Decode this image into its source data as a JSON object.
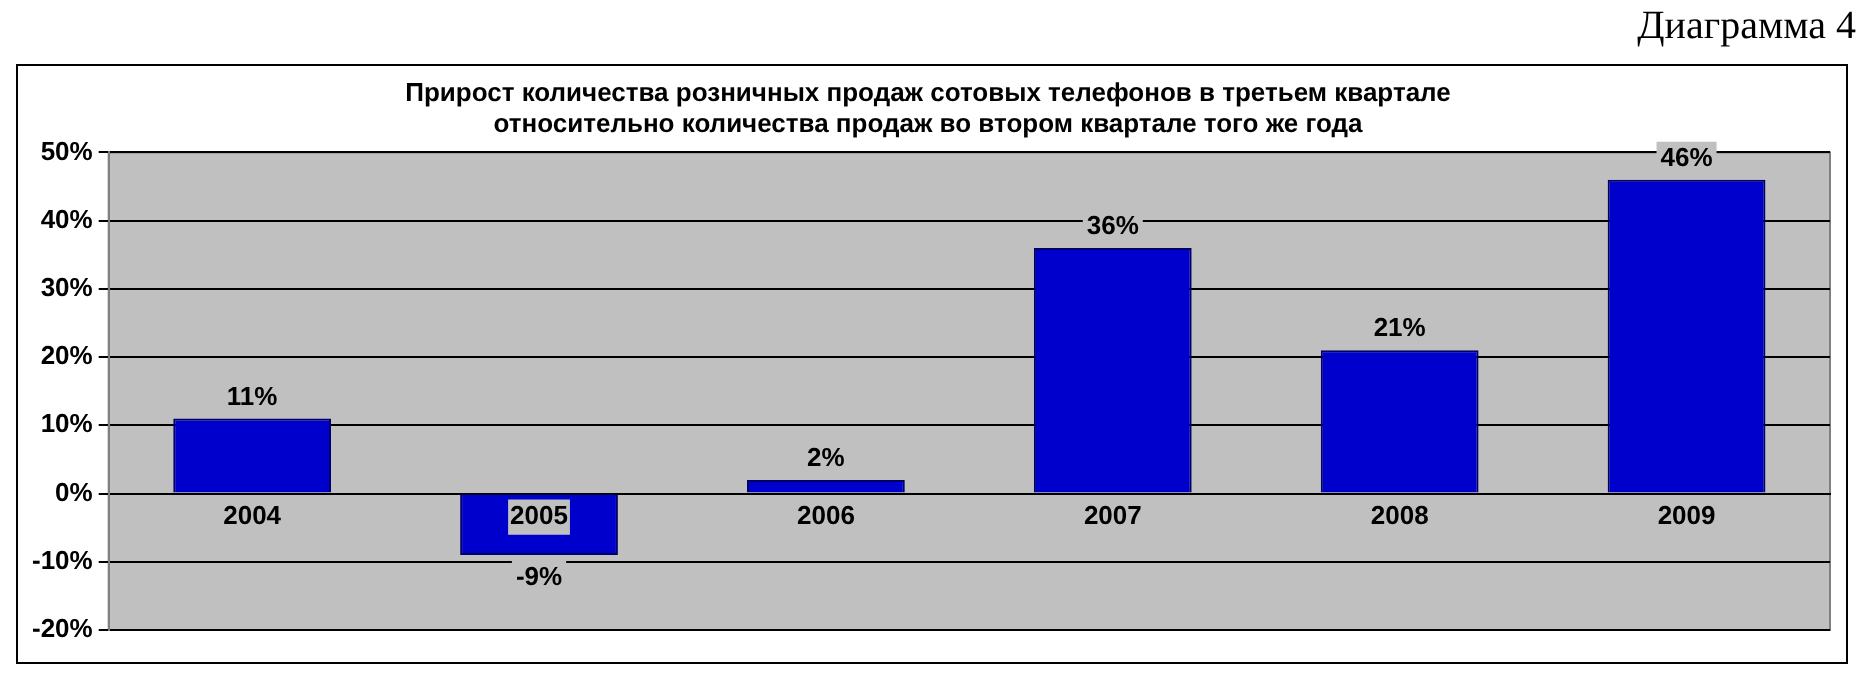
{
  "chart_data": {
    "type": "bar",
    "title": "Прирост количества розничных продаж сотовых телефонов в третьем квартале\nотносительно количества продаж во втором квартале того же года",
    "annotations": [
      "Диаграмма 4"
    ],
    "categories": [
      "2004",
      "2005",
      "2006",
      "2007",
      "2008",
      "2009"
    ],
    "values": [
      11,
      -9,
      2,
      36,
      21,
      46
    ],
    "color": "#0000cc",
    "ylim": [
      -20,
      50
    ],
    "yticks": [
      {
        "value": -20,
        "label": "-20%"
      },
      {
        "value": -10,
        "label": "-10%"
      },
      {
        "value": 0,
        "label": "0%"
      },
      {
        "value": 10,
        "label": "10%"
      },
      {
        "value": 20,
        "label": "20%"
      },
      {
        "value": 30,
        "label": "30%"
      },
      {
        "value": 40,
        "label": "40%"
      },
      {
        "value": 50,
        "label": "50%"
      }
    ],
    "value_labels": [
      "11%",
      "-9%",
      "2%",
      "36%",
      "21%",
      "46%"
    ],
    "grid": "y",
    "legend": false
  }
}
